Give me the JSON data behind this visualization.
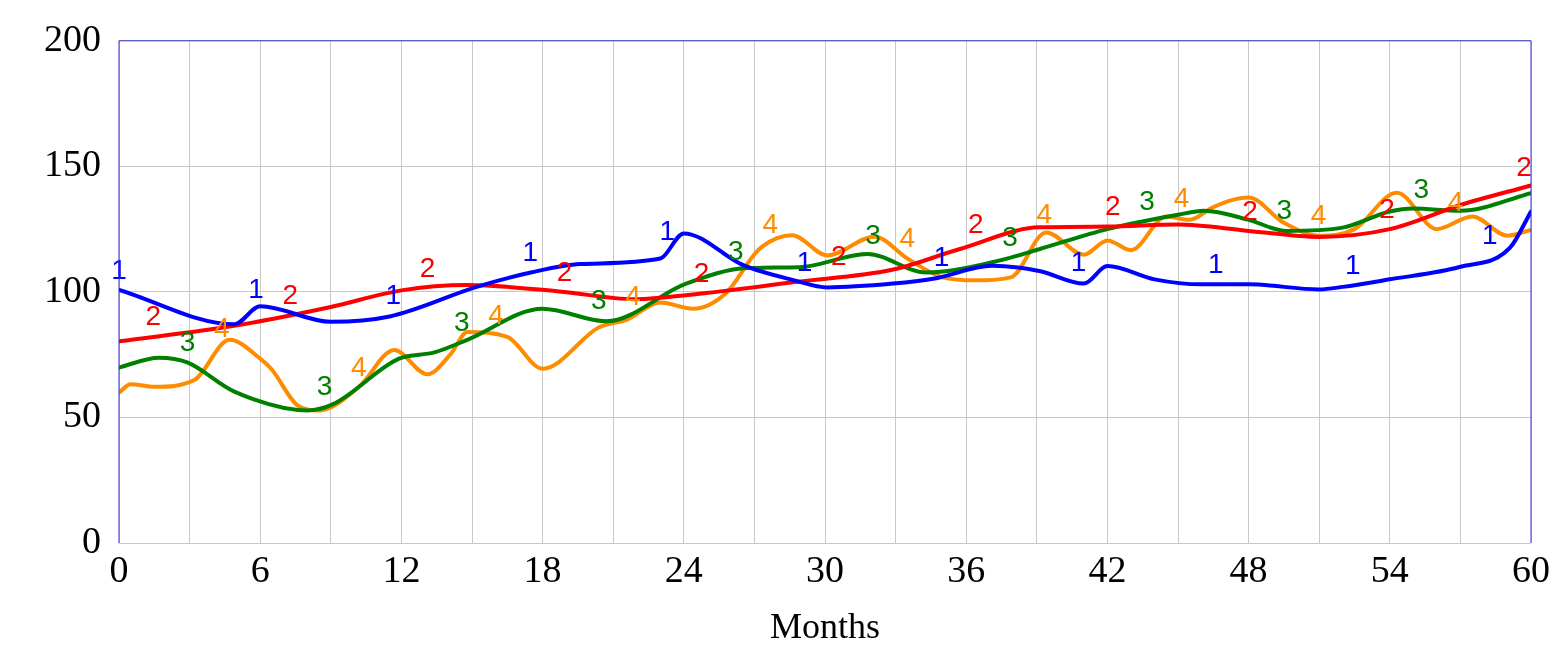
{
  "chart_data": {
    "type": "line",
    "xlabel": "Months",
    "xlim": [
      0,
      60
    ],
    "xticks": [
      0,
      {
        "value": 3,
        "label": null
      },
      6,
      {
        "value": 9,
        "label": null
      },
      12,
      {
        "value": 15,
        "label": null
      },
      18,
      {
        "value": 21,
        "label": null
      },
      24,
      {
        "value": 27,
        "label": null
      },
      30,
      {
        "value": 33,
        "label": null
      },
      36,
      {
        "value": 39,
        "label": null
      },
      42,
      {
        "value": 45,
        "label": null
      },
      48,
      {
        "value": 51,
        "label": null
      },
      54,
      {
        "value": 57,
        "label": null
      },
      60
    ],
    "ylim": [
      0,
      200
    ],
    "yticks": [
      0,
      50,
      100,
      150,
      200
    ],
    "grid": true,
    "series": [
      {
        "name": "1",
        "color": "#0000ff",
        "x": [
          0,
          4.9,
          6,
          9,
          11.5,
          15.2,
          17.5,
          19.6,
          23,
          24,
          26.5,
          28.7,
          30.1,
          32.9,
          34.6,
          37.1,
          39.1,
          41,
          42,
          44,
          46,
          48,
          51,
          52,
          54,
          57,
          59.1,
          60
        ],
        "values": [
          100.8,
          87.1,
          94.3,
          88.1,
          90.2,
          102,
          107.7,
          111.1,
          113.3,
          123.3,
          110.8,
          104.6,
          101.8,
          103.3,
          105.2,
          110.4,
          108.3,
          103.3,
          110.3,
          105,
          103,
          103,
          101,
          102,
          105,
          110,
          117.5,
          132
        ]
      },
      {
        "name": "2",
        "color": "#ff0000",
        "x": [
          0,
          4.9,
          9,
          12,
          14.8,
          18.7,
          21.9,
          24.4,
          28.7,
          32.9,
          35.7,
          39.1,
          42,
          45,
          48,
          51,
          54,
          57,
          60
        ],
        "values": [
          80.3,
          86.5,
          94,
          100.6,
          102.7,
          100.2,
          97.1,
          99,
          103.9,
          108.9,
          117,
          125.7,
          126,
          126.8,
          124.3,
          121.9,
          125,
          134.6,
          142.4
        ]
      },
      {
        "name": "3",
        "color": "#008000",
        "x": [
          0,
          1.7,
          2.9,
          4.9,
          8,
          9.1,
          11.9,
          13.4,
          14.8,
          18,
          20.7,
          24.1,
          26.7,
          28.9,
          31.8,
          34.3,
          37.2,
          39.1,
          42,
          45,
          46.1,
          48,
          49.6,
          52,
          54,
          55,
          57,
          60
        ],
        "values": [
          69.9,
          73.8,
          71.9,
          60.3,
          52.8,
          55.3,
          73.4,
          75.9,
          80.9,
          93.3,
          88.3,
          103.3,
          109.5,
          109.8,
          115.1,
          107.7,
          112,
          117,
          125,
          130.7,
          132.3,
          128.7,
          124.3,
          125.6,
          132,
          133.2,
          132.3,
          139.3
        ]
      },
      {
        "name": "4",
        "color": "#ff8c00",
        "x": [
          0,
          0.5,
          1.5,
          3.2,
          4.7,
          6,
          6.5,
          7.6,
          8.5,
          10.2,
          11.7,
          13.1,
          14.1,
          14.8,
          16.5,
          18,
          20.4,
          21.6,
          23,
          24.4,
          25.8,
          27.2,
          28.6,
          30.1,
          32.1,
          33.5,
          35,
          36.4,
          37.9,
          39.4,
          41,
          42,
          43,
          44.5,
          45.5,
          46.5,
          48,
          49.5,
          51,
          52.5,
          54.3,
          56,
          57.5,
          59,
          60
        ],
        "values": [
          59.9,
          63.2,
          62.2,
          64.9,
          80.9,
          73.4,
          69,
          54.7,
          52.8,
          62.2,
          76.9,
          67.2,
          75.3,
          84,
          82.1,
          69.4,
          85.9,
          89,
          95.8,
          93.3,
          99.6,
          117,
          122.6,
          114.5,
          122,
          113.3,
          105.8,
          104.6,
          105.8,
          123.7,
          114.8,
          120.5,
          116.6,
          130,
          128.7,
          133.8,
          137.6,
          127.5,
          122.4,
          125,
          139.5,
          125,
          130,
          122.4,
          124.7
        ]
      }
    ]
  }
}
